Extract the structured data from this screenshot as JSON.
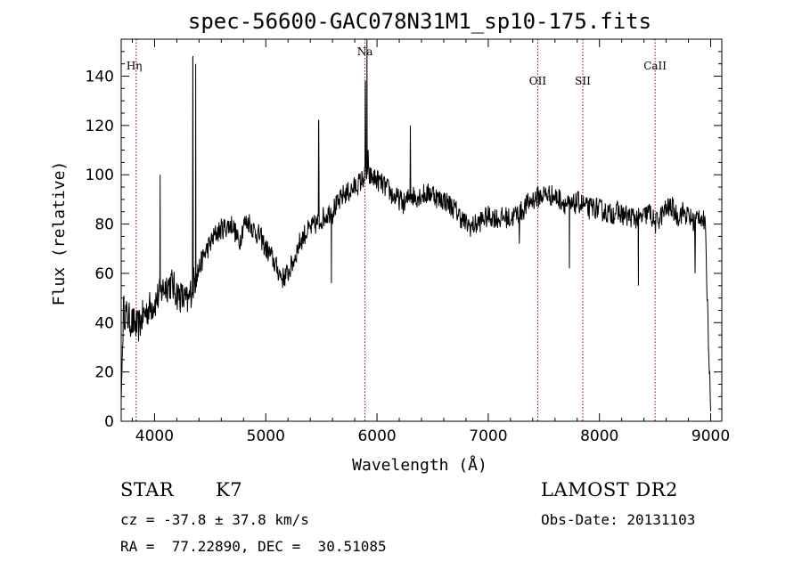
{
  "chart_data": {
    "type": "line",
    "title": "spec-56600-GAC078N31M1_sp10-175.fits",
    "xlabel": "Wavelength (Å)",
    "ylabel": "Flux (relative)",
    "xlim": [
      3700,
      9100
    ],
    "ylim": [
      0,
      155
    ],
    "xticks": [
      4000,
      5000,
      6000,
      7000,
      8000,
      9000
    ],
    "yticks": [
      0,
      20,
      40,
      60,
      80,
      100,
      120,
      140
    ],
    "grid": false,
    "continuum": [
      [
        3700,
        8
      ],
      [
        3720,
        45
      ],
      [
        3760,
        42
      ],
      [
        3800,
        40
      ],
      [
        3850,
        38
      ],
      [
        3900,
        43
      ],
      [
        3950,
        46
      ],
      [
        4000,
        48
      ],
      [
        4050,
        52
      ],
      [
        4100,
        55
      ],
      [
        4150,
        56
      ],
      [
        4200,
        52
      ],
      [
        4250,
        50
      ],
      [
        4300,
        48
      ],
      [
        4340,
        55
      ],
      [
        4400,
        62
      ],
      [
        4450,
        68
      ],
      [
        4500,
        72
      ],
      [
        4550,
        76
      ],
      [
        4600,
        78
      ],
      [
        4650,
        79
      ],
      [
        4700,
        80
      ],
      [
        4760,
        72
      ],
      [
        4800,
        80
      ],
      [
        4850,
        81
      ],
      [
        4900,
        77
      ],
      [
        4950,
        75
      ],
      [
        5000,
        70
      ],
      [
        5050,
        67
      ],
      [
        5100,
        62
      ],
      [
        5150,
        58
      ],
      [
        5200,
        60
      ],
      [
        5250,
        65
      ],
      [
        5300,
        72
      ],
      [
        5350,
        76
      ],
      [
        5400,
        78
      ],
      [
        5450,
        80
      ],
      [
        5500,
        82
      ],
      [
        5550,
        84
      ],
      [
        5600,
        86
      ],
      [
        5650,
        88
      ],
      [
        5700,
        92
      ],
      [
        5750,
        93
      ],
      [
        5800,
        95
      ],
      [
        5850,
        97
      ],
      [
        5900,
        100
      ],
      [
        5950,
        99
      ],
      [
        6000,
        98
      ],
      [
        6050,
        96
      ],
      [
        6100,
        94
      ],
      [
        6150,
        91
      ],
      [
        6200,
        90
      ],
      [
        6250,
        88
      ],
      [
        6300,
        92
      ],
      [
        6350,
        91
      ],
      [
        6400,
        92
      ],
      [
        6450,
        92
      ],
      [
        6500,
        93
      ],
      [
        6550,
        90
      ],
      [
        6600,
        90
      ],
      [
        6650,
        88
      ],
      [
        6700,
        86
      ],
      [
        6750,
        83
      ],
      [
        6800,
        80
      ],
      [
        6850,
        79
      ],
      [
        6900,
        80
      ],
      [
        6950,
        82
      ],
      [
        7000,
        83
      ],
      [
        7050,
        83
      ],
      [
        7100,
        82
      ],
      [
        7150,
        83
      ],
      [
        7200,
        82
      ],
      [
        7250,
        84
      ],
      [
        7300,
        85
      ],
      [
        7350,
        88
      ],
      [
        7400,
        90
      ],
      [
        7450,
        91
      ],
      [
        7500,
        92
      ],
      [
        7550,
        92
      ],
      [
        7600,
        91
      ],
      [
        7650,
        90
      ],
      [
        7700,
        88
      ],
      [
        7750,
        87
      ],
      [
        7800,
        89
      ],
      [
        7850,
        88
      ],
      [
        7900,
        86
      ],
      [
        7950,
        87
      ],
      [
        8000,
        86
      ],
      [
        8050,
        85
      ],
      [
        8100,
        84
      ],
      [
        8150,
        85
      ],
      [
        8200,
        84
      ],
      [
        8250,
        83
      ],
      [
        8300,
        83
      ],
      [
        8350,
        82
      ],
      [
        8400,
        83
      ],
      [
        8450,
        85
      ],
      [
        8500,
        80
      ],
      [
        8550,
        83
      ],
      [
        8600,
        86
      ],
      [
        8650,
        87
      ],
      [
        8700,
        83
      ],
      [
        8750,
        85
      ],
      [
        8800,
        83
      ],
      [
        8850,
        81
      ],
      [
        8900,
        84
      ],
      [
        8950,
        80
      ],
      [
        9000,
        4
      ]
    ],
    "features": [
      [
        4050,
        100
      ],
      [
        4070,
        55
      ],
      [
        4345,
        148
      ],
      [
        4350,
        52
      ],
      [
        4370,
        145
      ],
      [
        4380,
        60
      ],
      [
        5475,
        122
      ],
      [
        5480,
        78
      ],
      [
        5590,
        56
      ],
      [
        5600,
        80
      ],
      [
        5895,
        138
      ],
      [
        5910,
        155
      ],
      [
        5920,
        110
      ],
      [
        6300,
        120
      ],
      [
        6310,
        92
      ],
      [
        7280,
        72
      ],
      [
        7300,
        84
      ],
      [
        7730,
        62
      ],
      [
        7740,
        88
      ],
      [
        8350,
        55
      ],
      [
        8360,
        82
      ],
      [
        8860,
        60
      ],
      [
        8870,
        82
      ]
    ],
    "lines": [
      {
        "label": "Hη",
        "x": 3835
      },
      {
        "label": "Na",
        "x": 5892
      },
      {
        "label": "OII",
        "x": 7445
      },
      {
        "label": "SII",
        "x": 7850
      },
      {
        "label": "CaII",
        "x": 8500
      }
    ],
    "line_color": "#8b0000"
  },
  "footer": {
    "object_class": "STAR",
    "subclass": "K7",
    "survey": "LAMOST DR2",
    "cz": "cz = -37.8 ± 37.8 km/s",
    "obs_date": "Obs-Date: 20131103",
    "coords": "RA =  77.22890, DEC =  30.51085"
  }
}
